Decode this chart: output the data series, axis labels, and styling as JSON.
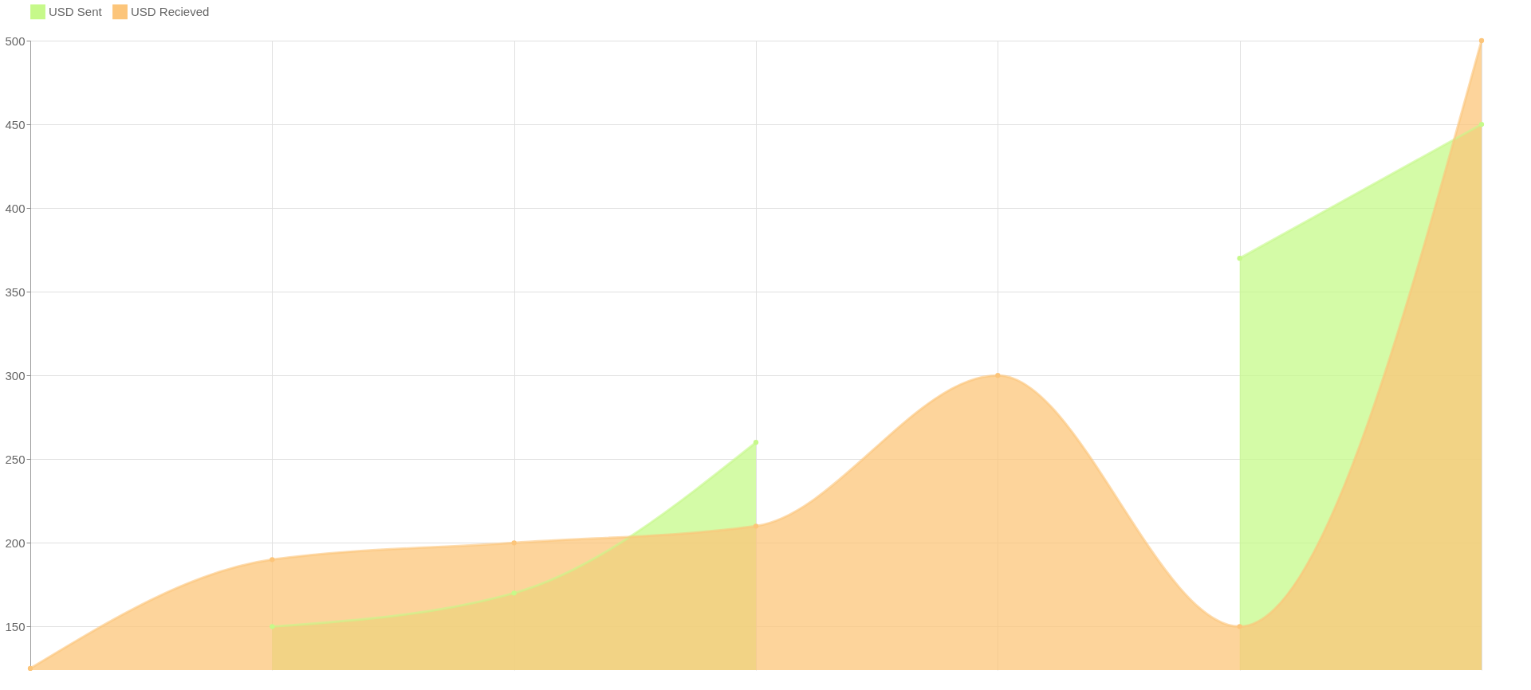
{
  "chart_data": {
    "type": "area",
    "categories": [
      null,
      null,
      null,
      null,
      null,
      null,
      null
    ],
    "series": [
      {
        "name": "USD Sent",
        "color": "#c6f98a",
        "values": [
          null,
          150,
          170,
          260,
          null,
          370,
          450
        ]
      },
      {
        "name": "USD Recieved",
        "color": "#fcc57a",
        "values": [
          125,
          190,
          200,
          210,
          300,
          150,
          500
        ]
      }
    ],
    "ylim": [
      124,
      500
    ],
    "yticks": [
      150,
      200,
      250,
      300,
      350,
      400,
      450,
      500
    ],
    "grid": true,
    "legend": "top",
    "marker": "circle",
    "tick_labels": "y"
  }
}
